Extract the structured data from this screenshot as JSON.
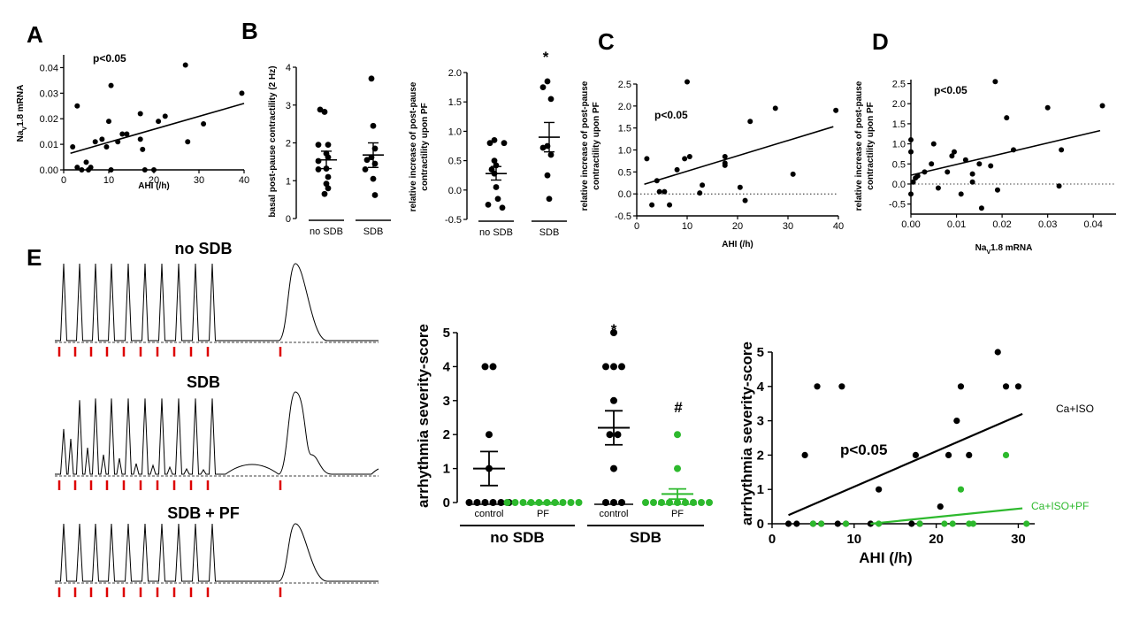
{
  "figure": {
    "letters": {
      "A": "A",
      "B": "B",
      "C": "C",
      "D": "D",
      "E": "E"
    }
  },
  "chart_data": [
    {
      "id": "A",
      "type": "scatter",
      "xlabel": "AHI (/h)",
      "ylabel_main": "Na",
      "ylabel_sub": "V",
      "ylabel_rest": "1.8 mRNA",
      "xlim": [
        0,
        40
      ],
      "ylim": [
        0,
        0.045
      ],
      "xticks": [
        0,
        10,
        20,
        30,
        40
      ],
      "yticks": [
        0,
        0.01,
        0.02,
        0.03,
        0.04
      ],
      "ytick_labels": [
        "0.00",
        "0.01",
        "0.02",
        "0.03",
        "0.04"
      ],
      "annotation": "p<0.05",
      "points": [
        {
          "x": 2,
          "y": 0.009
        },
        {
          "x": 3,
          "y": 0.025
        },
        {
          "x": 3,
          "y": 0.001
        },
        {
          "x": 4,
          "y": 0.0
        },
        {
          "x": 5,
          "y": 0.003
        },
        {
          "x": 5.5,
          "y": 0.0
        },
        {
          "x": 6,
          "y": 0.001
        },
        {
          "x": 7,
          "y": 0.011
        },
        {
          "x": 8.5,
          "y": 0.012
        },
        {
          "x": 9.5,
          "y": 0.009
        },
        {
          "x": 10,
          "y": 0.019
        },
        {
          "x": 10.5,
          "y": 0.0
        },
        {
          "x": 10.5,
          "y": 0.033
        },
        {
          "x": 12,
          "y": 0.011
        },
        {
          "x": 13,
          "y": 0.014
        },
        {
          "x": 14,
          "y": 0.014
        },
        {
          "x": 17,
          "y": 0.022
        },
        {
          "x": 17,
          "y": 0.012
        },
        {
          "x": 17.5,
          "y": 0.008
        },
        {
          "x": 18,
          "y": 0.0
        },
        {
          "x": 20,
          "y": 0.0
        },
        {
          "x": 21,
          "y": 0.019
        },
        {
          "x": 22.5,
          "y": 0.021
        },
        {
          "x": 27,
          "y": 0.041
        },
        {
          "x": 27.5,
          "y": 0.011
        },
        {
          "x": 31,
          "y": 0.018
        },
        {
          "x": 39.5,
          "y": 0.03
        }
      ],
      "fit": {
        "x1": 1.5,
        "y1": 0.0065,
        "x2": 40,
        "y2": 0.026
      }
    },
    {
      "id": "B1",
      "type": "dot_plot",
      "ylabel": "basal post-pause contractility (2 Hz)",
      "ylim": [
        0,
        4
      ],
      "yticks": [
        0,
        1,
        2,
        3,
        4
      ],
      "groups": [
        {
          "label": "no SDB",
          "mean": 1.55,
          "sem_low": 1.32,
          "sem_high": 1.78,
          "values": [
            2.82,
            2.88,
            1.95,
            1.95,
            1.72,
            1.62,
            1.52,
            1.32,
            1.1,
            1.3,
            0.92,
            0.8,
            0.65
          ]
        },
        {
          "label": "SDB",
          "mean": 1.68,
          "sem_low": 1.35,
          "sem_high": 2.0,
          "values": [
            3.7,
            2.45,
            1.85,
            1.62,
            1.55,
            1.45,
            1.3,
            1.05,
            0.62
          ]
        }
      ]
    },
    {
      "id": "B2",
      "type": "dot_plot",
      "ylabel_line1": "relative increase of post-pause",
      "ylabel_line2": "contractility upon PF",
      "ylim": [
        -0.5,
        2.0
      ],
      "yticks": [
        -0.5,
        0.0,
        0.5,
        1.0,
        1.5,
        2.0
      ],
      "ytick_labels": [
        "-0.5",
        "0.0",
        "0.5",
        "1.0",
        "1.5",
        "2.0"
      ],
      "significance": "*",
      "groups": [
        {
          "label": "no SDB",
          "mean": 0.28,
          "sem_low": 0.17,
          "sem_high": 0.4,
          "values": [
            0.85,
            0.8,
            0.8,
            0.5,
            0.42,
            0.35,
            0.28,
            0.05,
            -0.15,
            -0.25,
            -0.3
          ]
        },
        {
          "label": "SDB",
          "mean": 0.9,
          "sem_low": 0.65,
          "sem_high": 1.15,
          "values": [
            1.85,
            1.75,
            1.55,
            0.75,
            0.72,
            0.6,
            0.25,
            -0.15
          ]
        }
      ]
    },
    {
      "id": "C",
      "type": "scatter",
      "xlabel": "AHI (/h)",
      "ylabel_line1": "relative increase of post-pause",
      "ylabel_line2": "contractility upon PF",
      "xlim": [
        0,
        40
      ],
      "ylim": [
        -0.5,
        2.5
      ],
      "xticks": [
        0,
        10,
        20,
        30,
        40
      ],
      "yticks": [
        -0.5,
        0.0,
        0.5,
        1.0,
        1.5,
        2.0,
        2.5
      ],
      "ytick_labels": [
        "-0.5",
        "0.0",
        "0.5",
        "1.0",
        "1.5",
        "2.0",
        "2.5"
      ],
      "annotation": "p<0.05",
      "dotted_zero": true,
      "points": [
        {
          "x": 2,
          "y": 0.8
        },
        {
          "x": 3,
          "y": -0.25
        },
        {
          "x": 4,
          "y": 0.3
        },
        {
          "x": 4.5,
          "y": 0.05
        },
        {
          "x": 5.5,
          "y": 0.05
        },
        {
          "x": 6.5,
          "y": -0.25
        },
        {
          "x": 8,
          "y": 0.55
        },
        {
          "x": 9.5,
          "y": 0.8
        },
        {
          "x": 10,
          "y": 2.55
        },
        {
          "x": 10.5,
          "y": 0.85
        },
        {
          "x": 12.5,
          "y": 0.02
        },
        {
          "x": 13,
          "y": 0.2
        },
        {
          "x": 17.5,
          "y": 0.85
        },
        {
          "x": 17.5,
          "y": 0.7
        },
        {
          "x": 17.5,
          "y": 0.65
        },
        {
          "x": 20.5,
          "y": 0.15
        },
        {
          "x": 21.5,
          "y": -0.15
        },
        {
          "x": 22.5,
          "y": 1.65
        },
        {
          "x": 27.5,
          "y": 1.95
        },
        {
          "x": 31,
          "y": 0.45
        },
        {
          "x": 39.5,
          "y": 1.9
        }
      ],
      "fit": {
        "x1": 1.5,
        "y1": 0.22,
        "x2": 39,
        "y2": 1.53
      }
    },
    {
      "id": "D",
      "type": "scatter",
      "xlabel_main": "Na",
      "xlabel_sub": "V",
      "xlabel_rest": "1.8 mRNA",
      "ylabel_line1": "relative increase of post-pause",
      "ylabel_line2": "contractility upon PF",
      "xlim": [
        0,
        0.045
      ],
      "ylim": [
        -0.75,
        2.6
      ],
      "xticks": [
        0,
        0.01,
        0.02,
        0.03,
        0.04
      ],
      "xtick_labels": [
        "0.00",
        "0.01",
        "0.02",
        "0.03",
        "0.04"
      ],
      "yticks": [
        -0.5,
        0.0,
        0.5,
        1.0,
        1.5,
        2.0,
        2.5
      ],
      "ytick_labels": [
        "-0.5",
        "0.0",
        "0.5",
        "1.0",
        "1.5",
        "2.0",
        "2.5"
      ],
      "annotation": "p<0.05",
      "dotted_zero": true,
      "points": [
        {
          "x": 0.0,
          "y": 1.1
        },
        {
          "x": 0.0,
          "y": 0.8
        },
        {
          "x": 0.0,
          "y": -0.25
        },
        {
          "x": 0.0005,
          "y": 0.05
        },
        {
          "x": 0.001,
          "y": 0.15
        },
        {
          "x": 0.0015,
          "y": 0.2
        },
        {
          "x": 0.003,
          "y": 0.3
        },
        {
          "x": 0.0045,
          "y": 0.5
        },
        {
          "x": 0.005,
          "y": 1.0
        },
        {
          "x": 0.006,
          "y": -0.1
        },
        {
          "x": 0.008,
          "y": 0.3
        },
        {
          "x": 0.009,
          "y": 0.7
        },
        {
          "x": 0.0095,
          "y": 0.8
        },
        {
          "x": 0.011,
          "y": -0.25
        },
        {
          "x": 0.012,
          "y": 0.6
        },
        {
          "x": 0.0135,
          "y": 0.25
        },
        {
          "x": 0.0135,
          "y": 0.05
        },
        {
          "x": 0.015,
          "y": 0.5
        },
        {
          "x": 0.0155,
          "y": -0.6
        },
        {
          "x": 0.0175,
          "y": 0.45
        },
        {
          "x": 0.0185,
          "y": 2.55
        },
        {
          "x": 0.019,
          "y": -0.15
        },
        {
          "x": 0.021,
          "y": 1.65
        },
        {
          "x": 0.0225,
          "y": 0.85
        },
        {
          "x": 0.03,
          "y": 1.9
        },
        {
          "x": 0.0325,
          "y": -0.05
        },
        {
          "x": 0.033,
          "y": 0.85
        },
        {
          "x": 0.042,
          "y": 1.95
        }
      ],
      "fit": {
        "x1": 0.0,
        "y1": 0.22,
        "x2": 0.0415,
        "y2": 1.33
      }
    },
    {
      "id": "E2",
      "type": "dot_plot",
      "ylabel": "arrhythmia severity-score",
      "ylim": [
        0,
        5
      ],
      "yticks": [
        0,
        1,
        2,
        3,
        4,
        5
      ],
      "colors": {
        "control": "#000000",
        "pf": "#2db92d"
      },
      "group_labels": {
        "no_sdb": "no SDB",
        "sdb": "SDB"
      },
      "significance_star": "*",
      "significance_hash": "#",
      "groups": [
        {
          "label": "control",
          "parent": "no SDB",
          "color": "control",
          "mean": 1.0,
          "sem_low": 0.5,
          "sem_high": 1.5,
          "values": [
            4,
            4,
            2,
            1,
            0,
            0,
            0,
            0,
            0,
            0
          ]
        },
        {
          "label": "PF",
          "parent": "no SDB",
          "color": "pf",
          "mean": 0.0,
          "sem_low": 0.0,
          "sem_high": 0.0,
          "values": [
            0,
            0,
            0,
            0,
            0,
            0,
            0,
            0,
            0,
            0
          ]
        },
        {
          "label": "control",
          "parent": "SDB",
          "color": "control",
          "mean": 2.2,
          "sem_low": 1.7,
          "sem_high": 2.7,
          "values": [
            5,
            4,
            4,
            4,
            3,
            2,
            2,
            1,
            0,
            0,
            0
          ]
        },
        {
          "label": "PF",
          "parent": "SDB",
          "color": "pf",
          "mean": 0.25,
          "sem_low": 0.1,
          "sem_high": 0.4,
          "values": [
            2,
            1,
            0,
            0,
            0,
            0,
            0,
            0,
            0,
            0,
            0
          ]
        }
      ]
    },
    {
      "id": "E3",
      "type": "scatter",
      "xlabel": "AHI (/h)",
      "ylabel": "arrhythmia severity-score",
      "xlim": [
        0,
        32
      ],
      "ylim": [
        0,
        5
      ],
      "xticks": [
        0,
        10,
        20,
        30
      ],
      "yticks": [
        0,
        1,
        2,
        3,
        4,
        5
      ],
      "annotation": "p<0.05",
      "series": [
        {
          "name": "Ca+ISO",
          "color": "#000000",
          "points": [
            [
              2,
              0
            ],
            [
              3,
              0
            ],
            [
              4,
              2
            ],
            [
              5,
              0
            ],
            [
              5.5,
              4
            ],
            [
              6,
              0
            ],
            [
              8,
              0
            ],
            [
              8.5,
              4
            ],
            [
              9,
              0
            ],
            [
              12,
              0
            ],
            [
              13,
              1
            ],
            [
              17,
              0
            ],
            [
              17.5,
              2
            ],
            [
              18,
              0
            ],
            [
              20.5,
              0.5
            ],
            [
              21.5,
              2
            ],
            [
              22.5,
              3
            ],
            [
              23,
              4
            ],
            [
              24,
              2
            ],
            [
              27.5,
              5
            ],
            [
              28.5,
              4
            ],
            [
              30,
              4
            ]
          ],
          "fit": [
            2,
            0.25,
            30.5,
            3.2
          ]
        },
        {
          "name": "Ca+ISO+PF",
          "color": "#2db92d",
          "points": [
            [
              5,
              0
            ],
            [
              6,
              0
            ],
            [
              9,
              0
            ],
            [
              13,
              0
            ],
            [
              18,
              0
            ],
            [
              21,
              0
            ],
            [
              22,
              0
            ],
            [
              23,
              1
            ],
            [
              24,
              0
            ],
            [
              24.5,
              0
            ],
            [
              28.5,
              2
            ],
            [
              31,
              0
            ]
          ],
          "fit": [
            12,
            0.0,
            30.5,
            0.45
          ]
        }
      ]
    }
  ],
  "traces": {
    "titles": [
      "no SDB",
      "SDB",
      "SDB + PF"
    ],
    "marker_color": "#dd0000"
  }
}
